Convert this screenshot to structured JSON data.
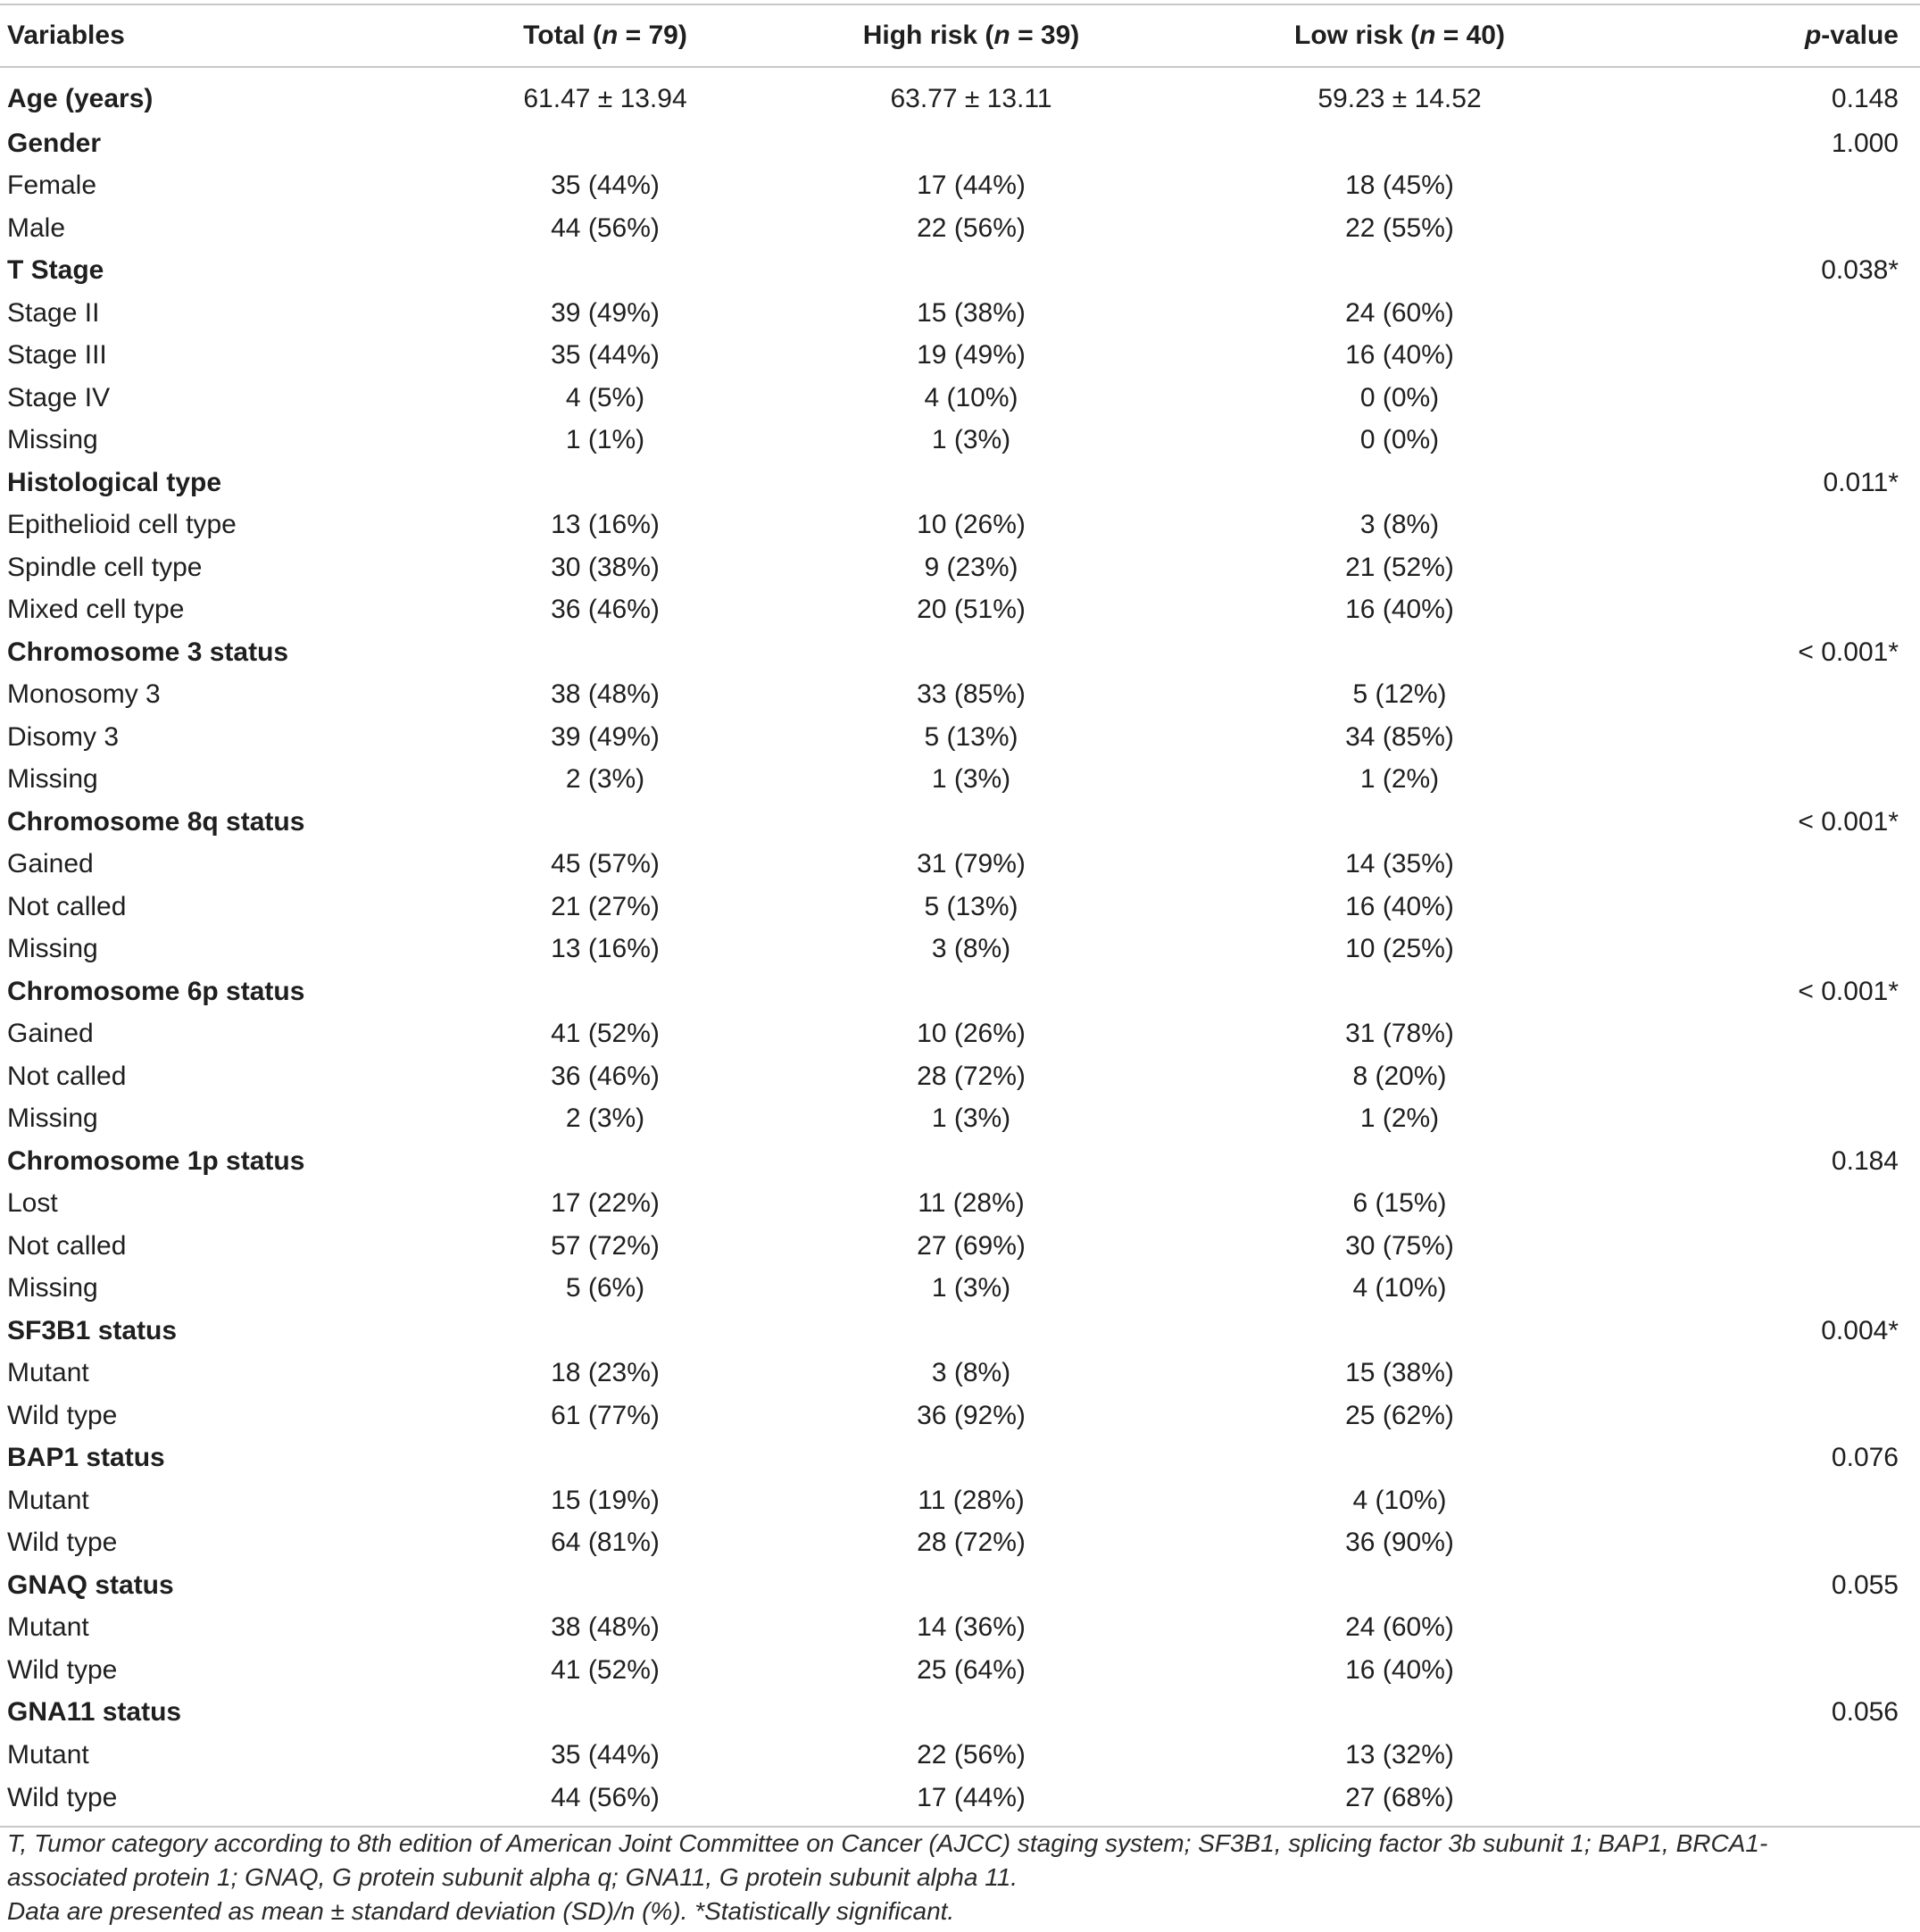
{
  "header": {
    "variables": "Variables",
    "total_prefix": "Total (",
    "total_n": "n",
    "total_suffix": " = 79)",
    "high_prefix": "High risk (",
    "high_n": "n",
    "high_suffix": " = 39)",
    "low_prefix": "Low risk (",
    "low_n": "n",
    "low_suffix": " = 40)",
    "p_prefix": "p",
    "p_suffix": "-value"
  },
  "rows": [
    {
      "type": "group",
      "label": "Age (years)",
      "total": "61.47 ± 13.94",
      "high": "63.77 ± 13.11",
      "low": "59.23 ± 14.52",
      "p": "0.148"
    },
    {
      "type": "group",
      "label": "Gender",
      "total": "",
      "high": "",
      "low": "",
      "p": "1.000"
    },
    {
      "type": "item",
      "label": "Female",
      "total": "35 (44%)",
      "high": "17 (44%)",
      "low": "18 (45%)",
      "p": ""
    },
    {
      "type": "item",
      "label": "Male",
      "total": "44 (56%)",
      "high": "22 (56%)",
      "low": "22 (55%)",
      "p": ""
    },
    {
      "type": "group",
      "label": "T Stage",
      "total": "",
      "high": "",
      "low": "",
      "p": "0.038*"
    },
    {
      "type": "item",
      "label": "Stage II",
      "total": "39 (49%)",
      "high": "15 (38%)",
      "low": "24 (60%)",
      "p": ""
    },
    {
      "type": "item",
      "label": "Stage III",
      "total": "35 (44%)",
      "high": "19 (49%)",
      "low": "16 (40%)",
      "p": ""
    },
    {
      "type": "item",
      "label": "Stage IV",
      "total": "4 (5%)",
      "high": "4 (10%)",
      "low": "0 (0%)",
      "p": ""
    },
    {
      "type": "item",
      "label": "Missing",
      "total": "1 (1%)",
      "high": "1 (3%)",
      "low": "0 (0%)",
      "p": ""
    },
    {
      "type": "group",
      "label": "Histological type",
      "total": "",
      "high": "",
      "low": "",
      "p": "0.011*"
    },
    {
      "type": "item",
      "label": "Epithelioid cell type",
      "total": "13 (16%)",
      "high": "10 (26%)",
      "low": "3 (8%)",
      "p": ""
    },
    {
      "type": "item",
      "label": "Spindle cell type",
      "total": "30 (38%)",
      "high": "9 (23%)",
      "low": "21 (52%)",
      "p": ""
    },
    {
      "type": "item",
      "label": "Mixed cell type",
      "total": "36 (46%)",
      "high": "20 (51%)",
      "low": "16 (40%)",
      "p": ""
    },
    {
      "type": "group",
      "label": "Chromosome 3 status",
      "total": "",
      "high": "",
      "low": "",
      "p": "< 0.001*"
    },
    {
      "type": "item",
      "label": "Monosomy 3",
      "total": "38 (48%)",
      "high": "33 (85%)",
      "low": "5 (12%)",
      "p": ""
    },
    {
      "type": "item",
      "label": "Disomy 3",
      "total": "39 (49%)",
      "high": "5 (13%)",
      "low": "34 (85%)",
      "p": ""
    },
    {
      "type": "item",
      "label": "Missing",
      "total": "2 (3%)",
      "high": "1 (3%)",
      "low": "1 (2%)",
      "p": ""
    },
    {
      "type": "group",
      "label": "Chromosome 8q status",
      "total": "",
      "high": "",
      "low": "",
      "p": "< 0.001*"
    },
    {
      "type": "item",
      "label": "Gained",
      "total": "45 (57%)",
      "high": "31 (79%)",
      "low": "14 (35%)",
      "p": ""
    },
    {
      "type": "item",
      "label": "Not called",
      "total": "21 (27%)",
      "high": "5 (13%)",
      "low": "16 (40%)",
      "p": ""
    },
    {
      "type": "item",
      "label": "Missing",
      "total": "13 (16%)",
      "high": "3 (8%)",
      "low": "10 (25%)",
      "p": ""
    },
    {
      "type": "group",
      "label": "Chromosome 6p status",
      "total": "",
      "high": "",
      "low": "",
      "p": "< 0.001*"
    },
    {
      "type": "item",
      "label": "Gained",
      "total": "41 (52%)",
      "high": "10 (26%)",
      "low": "31 (78%)",
      "p": ""
    },
    {
      "type": "item",
      "label": "Not called",
      "total": "36 (46%)",
      "high": "28 (72%)",
      "low": "8 (20%)",
      "p": ""
    },
    {
      "type": "item",
      "label": "Missing",
      "total": "2 (3%)",
      "high": "1 (3%)",
      "low": "1 (2%)",
      "p": ""
    },
    {
      "type": "group",
      "label": "Chromosome 1p status",
      "total": "",
      "high": "",
      "low": "",
      "p": "0.184"
    },
    {
      "type": "item",
      "label": "Lost",
      "total": "17 (22%)",
      "high": "11 (28%)",
      "low": "6 (15%)",
      "p": ""
    },
    {
      "type": "item",
      "label": "Not called",
      "total": "57 (72%)",
      "high": "27 (69%)",
      "low": "30 (75%)",
      "p": ""
    },
    {
      "type": "item",
      "label": "Missing",
      "total": "5 (6%)",
      "high": "1 (3%)",
      "low": "4 (10%)",
      "p": ""
    },
    {
      "type": "group",
      "label": "SF3B1 status",
      "total": "",
      "high": "",
      "low": "",
      "p": "0.004*"
    },
    {
      "type": "item",
      "label": "Mutant",
      "total": "18 (23%)",
      "high": "3 (8%)",
      "low": "15 (38%)",
      "p": ""
    },
    {
      "type": "item",
      "label": "Wild type",
      "total": "61 (77%)",
      "high": "36 (92%)",
      "low": "25 (62%)",
      "p": ""
    },
    {
      "type": "group",
      "label": "BAP1 status",
      "total": "",
      "high": "",
      "low": "",
      "p": "0.076"
    },
    {
      "type": "item",
      "label": "Mutant",
      "total": "15 (19%)",
      "high": "11 (28%)",
      "low": "4 (10%)",
      "p": ""
    },
    {
      "type": "item",
      "label": "Wild type",
      "total": "64 (81%)",
      "high": "28 (72%)",
      "low": "36 (90%)",
      "p": ""
    },
    {
      "type": "group",
      "label": "GNAQ status",
      "total": "",
      "high": "",
      "low": "",
      "p": "0.055"
    },
    {
      "type": "item",
      "label": "Mutant",
      "total": "38 (48%)",
      "high": "14 (36%)",
      "low": "24 (60%)",
      "p": ""
    },
    {
      "type": "item",
      "label": "Wild type",
      "total": "41 (52%)",
      "high": "25 (64%)",
      "low": "16 (40%)",
      "p": ""
    },
    {
      "type": "group",
      "label": "GNA11 status",
      "total": "",
      "high": "",
      "low": "",
      "p": "0.056"
    },
    {
      "type": "item",
      "label": "Mutant",
      "total": "35 (44%)",
      "high": "22 (56%)",
      "low": "13 (32%)",
      "p": ""
    },
    {
      "type": "item",
      "label": "Wild type",
      "total": "44 (56%)",
      "high": "17 (44%)",
      "low": "27 (68%)",
      "p": ""
    }
  ],
  "footnotes": {
    "abbreviations": "T, Tumor category according to 8th edition of American Joint Committee on Cancer (AJCC) staging system; SF3B1, splicing factor 3b subunit 1; BAP1, BRCA1-associated protein 1; GNAQ, G protein subunit alpha q; GNA11, G protein subunit alpha 11.",
    "data_note": "Data are presented as mean ± standard deviation (SD)/n (%). *Statistically significant."
  }
}
